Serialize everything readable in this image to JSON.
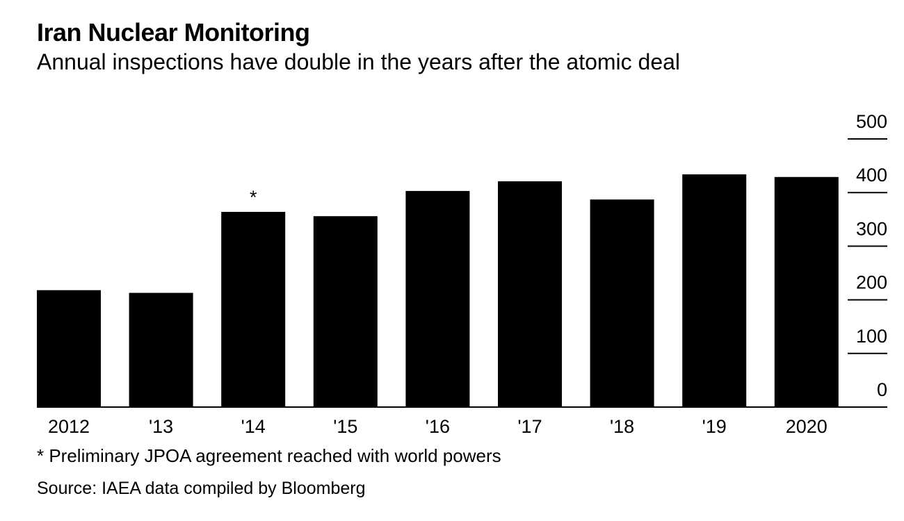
{
  "title": "Iran Nuclear Monitoring",
  "subtitle": "Annual inspections have double in the years after the atomic deal",
  "footnote": "* Preliminary JPOA agreement reached with world powers",
  "source": "Source: IAEA data compiled by Bloomberg",
  "colors": {
    "bar": "#000000",
    "axis": "#000000",
    "background": "#ffffff"
  },
  "chart_data": {
    "type": "bar",
    "categories": [
      "2012",
      "'13",
      "'14",
      "'15",
      "'16",
      "'17",
      "'18",
      "'19",
      "2020"
    ],
    "values": [
      218,
      213,
      364,
      356,
      403,
      421,
      387,
      434,
      429
    ],
    "ylim": [
      0,
      500
    ],
    "yticks": [
      "0",
      "100",
      "200",
      "300",
      "400",
      "500"
    ],
    "y_axis_position": "right",
    "grid": false,
    "annotations": [
      {
        "category": "'14",
        "text": "*"
      }
    ],
    "xlabel": "",
    "ylabel": ""
  }
}
